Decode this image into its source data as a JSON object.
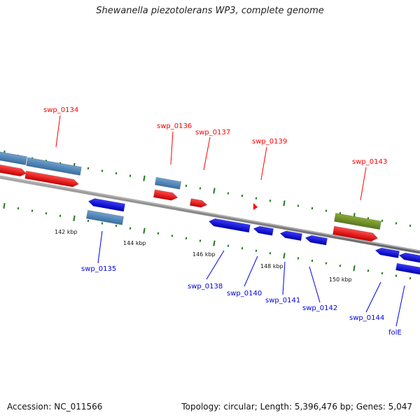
{
  "title": "Shewanella piezotolerans WP3, complete genome",
  "accession": "Accession: NC_011566",
  "genome_info": "Topology: circular; Length: 5,396,476 bp; Genes: 5,047",
  "colors": {
    "forward_cds": "#ff0000",
    "reverse_cds": "#0000ee",
    "forward_gene": "#4a86c0",
    "reverse_gene": "#4a86c0",
    "other_gene": "#6f8f2a",
    "backbone": "#888888",
    "ticks": "#1e7a1e"
  },
  "scale_labels": [
    "142 kbp",
    "144 kbp",
    "146 kbp",
    "148 kbp",
    "150 kbp"
  ],
  "genes": [
    {
      "label": "swp_0134",
      "strand": "forward"
    },
    {
      "label": "swp_0135",
      "strand": "reverse"
    },
    {
      "label": "swp_0136",
      "strand": "forward"
    },
    {
      "label": "swp_0137",
      "strand": "forward"
    },
    {
      "label": "swp_0138",
      "strand": "reverse"
    },
    {
      "label": "swp_0139",
      "strand": "forward"
    },
    {
      "label": "swp_0140",
      "strand": "reverse"
    },
    {
      "label": "swp_0141",
      "strand": "reverse"
    },
    {
      "label": "swp_0142",
      "strand": "reverse"
    },
    {
      "label": "swp_0143",
      "strand": "forward"
    },
    {
      "label": "swp_0144",
      "strand": "reverse"
    },
    {
      "label": "folE",
      "strand": "reverse"
    }
  ]
}
